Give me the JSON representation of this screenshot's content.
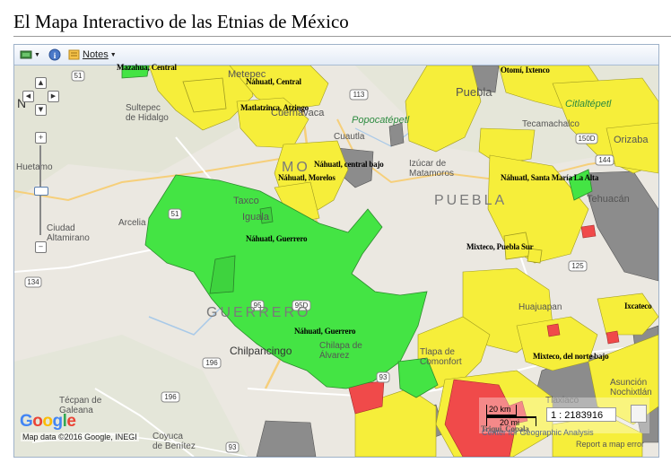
{
  "page": {
    "title": "El Mapa Interactivo de las Etnias de México"
  },
  "toolbar": {
    "layers_icon": "layers-icon",
    "info_icon": "info-icon",
    "notes_icon": "notes-icon",
    "notes_label": "Notes"
  },
  "map_controls": {
    "north_label": "N",
    "pan_up": "▲",
    "pan_left": "◀",
    "pan_right": "▶",
    "pan_down": "▼",
    "zoom_in": "+",
    "zoom_out": "−",
    "zoom_level_fraction": 0.5
  },
  "ethnic_labels": {
    "l1": "Mazahua, Central",
    "l2": "Otomí, Ixtenco",
    "l3": "Náhuatl, Central",
    "l4": "Matlatzinca, Atzingo",
    "l5": "Náhuatl, central bajo",
    "l6": "Náhuatl, Morelos",
    "l7": "Náhuatl, Santa María La Alta",
    "l8": "Náhuatl, Guerrero",
    "l9": "Mixteco, Puebla Sur",
    "l10": "Náhuatl, Guerrero",
    "l11": "Ixcateco",
    "l12": "Mixteco, del norte bajo",
    "l13": "Triqui, Copala"
  },
  "base_map_labels": {
    "metepec": "Metepec",
    "puebla": "Puebla",
    "sultepec": "Sultepec\nde Hidalgo",
    "cuernavaca": "Cuernavaca",
    "popocatepetl": "Popocatépetl",
    "citlaltepetl": "Citlaltépetl",
    "tecamachalco": "Tecamachalco",
    "orizaba": "Orizaba",
    "cuautla": "Cuautla",
    "izucar": "Izúcar de\nMatamoros",
    "puebla_state": "PUEBLA",
    "mo": "MO",
    "tehuacan": "Tehuacán",
    "taxco": "Taxco",
    "iguala": "Iguala",
    "huetamo": "Huetamo",
    "arcelia": "Arcelia",
    "altamirano": "Ciudad\nAltamirano",
    "guerrero_state": "GUERRERO",
    "huajuapan": "Huajuapan",
    "chilpancingo": "Chilpancingo",
    "chilapa": "Chilapa de\nÁlvarez",
    "tlapa": "Tlapa de\nComonfort",
    "tecpan": "Técpan de\nGaleana",
    "coyuca": "Coyuca\nde Benítez",
    "asuncion": "Asunción\nNochixtlán",
    "tlaxiaco": "Tlaxiaco"
  },
  "routes": [
    "51",
    "113",
    "150D",
    "144",
    "51",
    "134",
    "125",
    "95",
    "95D",
    "93",
    "196",
    "196",
    "93"
  ],
  "attribution": {
    "google": "Google",
    "map_data": "Map data ©2016 Google, INEGI"
  },
  "scale": {
    "km": "20 km",
    "mi": "20 mi",
    "ratio": "1 : 2183916",
    "center_credit": "Center for Geographic Analysis",
    "report": "Report a map error"
  },
  "colors": {
    "green": "#44e444",
    "yellow": "#f6ee3a",
    "gray": "#8c8c8c",
    "red": "#f04a4a",
    "map_bg": "#e9e6df"
  }
}
